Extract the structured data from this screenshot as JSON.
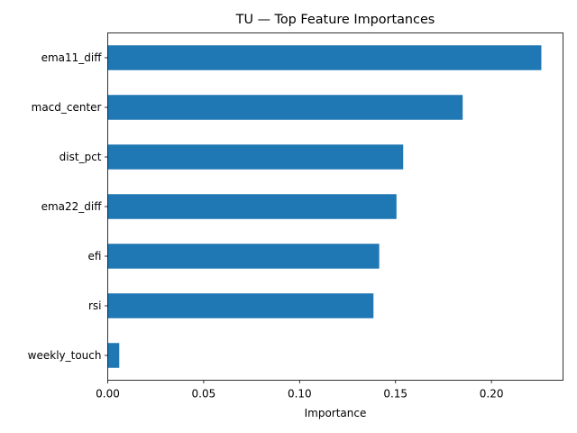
{
  "chart_data": {
    "type": "bar",
    "orientation": "horizontal",
    "title": "TU — Top Feature Importances",
    "xlabel": "Importance",
    "ylabel": "",
    "categories": [
      "ema11_diff",
      "macd_center",
      "dist_pct",
      "ema22_diff",
      "efi",
      "rsi",
      "weekly_touch"
    ],
    "values": [
      0.226,
      0.185,
      0.154,
      0.1505,
      0.1415,
      0.1385,
      0.006
    ],
    "xlim": [
      0.0,
      0.2373
    ],
    "xticks": [
      0.0,
      0.05,
      0.1,
      0.15,
      0.2
    ],
    "xtick_labels": [
      "0.00",
      "0.05",
      "0.10",
      "0.15",
      "0.20"
    ],
    "bar_color": "#1f77b4",
    "grid": false,
    "legend": "none"
  }
}
